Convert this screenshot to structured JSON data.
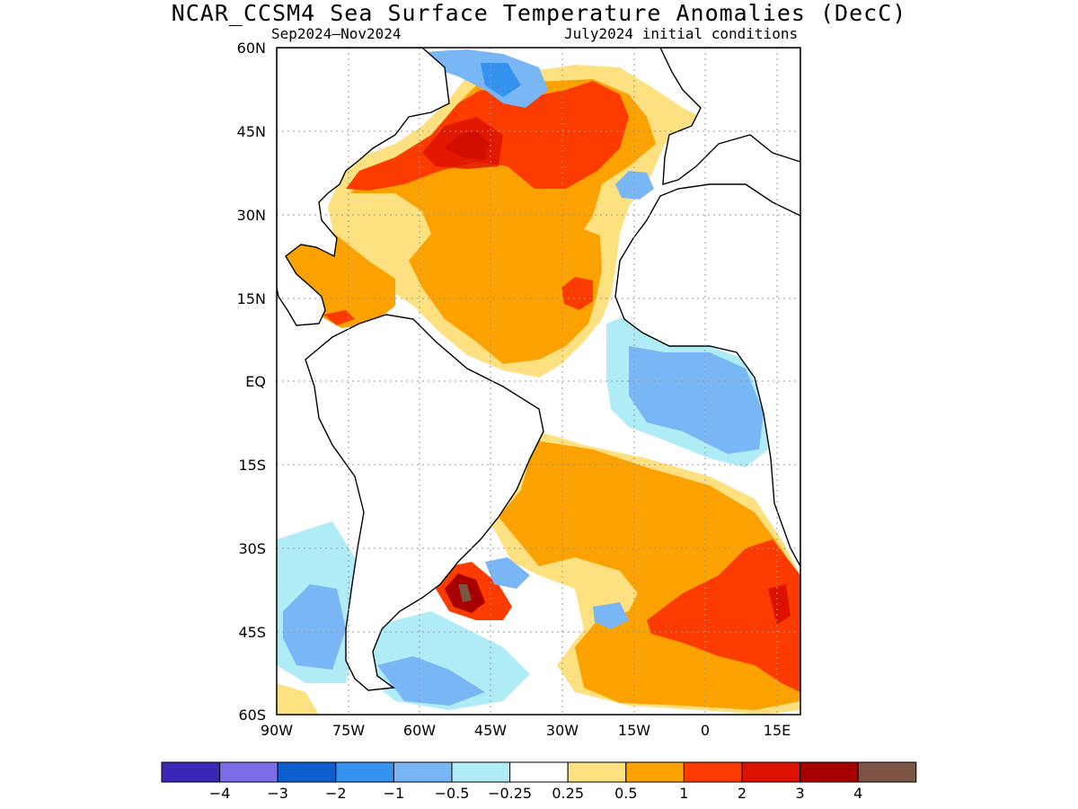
{
  "title": "NCAR_CCSM4 Sea Surface Temperature Anomalies (DecC)",
  "subtitle_left": "Sep2024–Nov2024",
  "subtitle_right": "July2024 initial conditions",
  "map": {
    "region": "Atlantic Ocean",
    "lon_range": [
      -90,
      20
    ],
    "lat_range": [
      -60,
      60
    ],
    "lat_ticks": [
      "60N",
      "45N",
      "30N",
      "15N",
      "EQ",
      "15S",
      "30S",
      "45S",
      "60S"
    ],
    "lon_ticks": [
      "90W",
      "75W",
      "60W",
      "45W",
      "30W",
      "15W",
      "0",
      "15E"
    ],
    "grid": true
  },
  "colorbar": {
    "colors": [
      "#3a27b8",
      "#7b6ce8",
      "#0d5fd0",
      "#3592ee",
      "#78b6f5",
      "#b0ecf6",
      "#ffffff",
      "#fde080",
      "#fba100",
      "#fb3b00",
      "#dc1200",
      "#a60000",
      "#7b5443"
    ],
    "labels": [
      "−4",
      "−3",
      "−2",
      "−1",
      "−0.5",
      "−0.25",
      "0.25",
      "0.5",
      "1",
      "2",
      "3",
      "4"
    ]
  }
}
